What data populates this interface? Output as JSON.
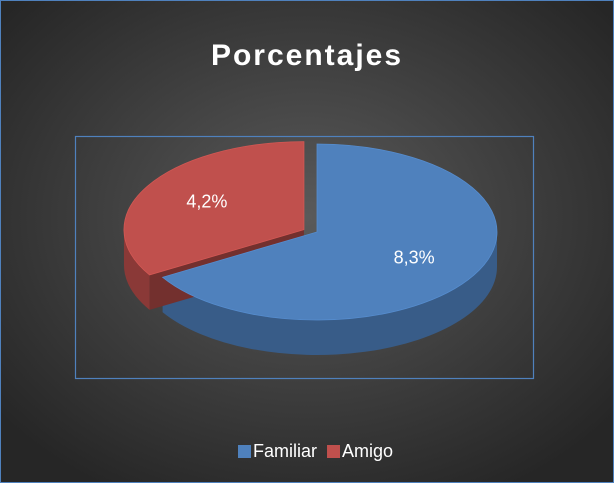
{
  "chart_data": {
    "type": "pie",
    "title": "Porcentajes",
    "categories": [
      "Familiar",
      "Amigo"
    ],
    "values": [
      8.3,
      4.2
    ],
    "value_labels": [
      "8,3%",
      "4,2%"
    ],
    "colors": [
      "#4f81bd",
      "#c0504d"
    ],
    "legend": "bottom"
  }
}
